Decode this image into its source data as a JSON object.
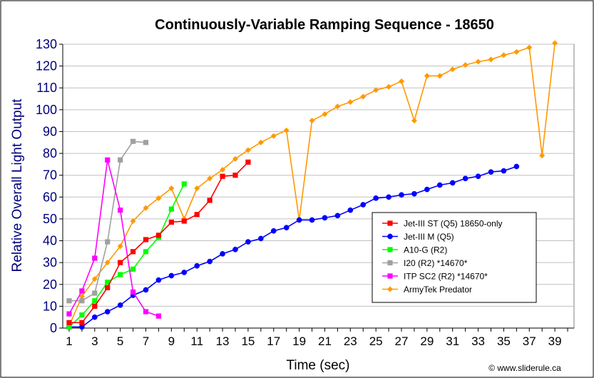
{
  "chart_data": {
    "type": "line",
    "title": "Continuously-Variable Ramping Sequence - 18650",
    "xlabel": "Time (sec)",
    "ylabel": "Relative Overall Light Output",
    "xlim": [
      0.5,
      40.5
    ],
    "ylim": [
      0,
      130
    ],
    "x_ticks": [
      1,
      3,
      5,
      7,
      9,
      11,
      13,
      15,
      17,
      19,
      21,
      23,
      25,
      27,
      29,
      31,
      33,
      35,
      37,
      39
    ],
    "y_ticks": [
      0,
      10,
      20,
      30,
      40,
      50,
      60,
      70,
      80,
      90,
      100,
      110,
      120,
      130
    ],
    "grid": "horizontal",
    "legend_position": "right",
    "credit": "© www.sliderule.ca",
    "series": [
      {
        "name": "Jet-III ST (Q5) 18650-only",
        "color": "#ff0000",
        "marker": "square",
        "x": [
          1,
          2,
          3,
          4,
          5,
          6,
          7,
          8,
          9,
          10,
          11,
          12,
          13,
          14,
          15
        ],
        "y": [
          2.5,
          2.5,
          10,
          18.5,
          30,
          35,
          40.5,
          42.5,
          48.5,
          49,
          52,
          58.5,
          69.5,
          70,
          76
        ]
      },
      {
        "name": "Jet-III M (Q5)",
        "color": "#0000ff",
        "marker": "circle",
        "x": [
          1,
          2,
          3,
          4,
          5,
          6,
          7,
          8,
          9,
          10,
          11,
          12,
          13,
          14,
          15,
          16,
          17,
          18,
          19,
          20,
          21,
          22,
          23,
          24,
          25,
          26,
          27,
          28,
          29,
          30,
          31,
          32,
          33,
          34,
          35,
          36
        ],
        "y": [
          0.5,
          0.5,
          5,
          7.5,
          10.5,
          15,
          17.5,
          22,
          24,
          25.5,
          28.5,
          30.5,
          34,
          36,
          39.5,
          41,
          44.5,
          46,
          49.5,
          49.5,
          50.5,
          51.5,
          54,
          56.5,
          59.5,
          60,
          61,
          61.5,
          63.5,
          65.5,
          66.5,
          68.5,
          69.5,
          71.5,
          72,
          74
        ]
      },
      {
        "name": "A10-G (R2)",
        "color": "#00ff00",
        "marker": "square",
        "x": [
          1,
          2,
          3,
          4,
          5,
          6,
          7,
          8,
          9,
          10
        ],
        "y": [
          0.5,
          6,
          12.5,
          21,
          24.5,
          27,
          35,
          41.5,
          54.5,
          66
        ]
      },
      {
        "name": "I20 (R2) *14670*",
        "color": "#a0a0a0",
        "marker": "square",
        "x": [
          1,
          2,
          3,
          4,
          5,
          6,
          7
        ],
        "y": [
          12.5,
          12.5,
          16,
          39.5,
          77,
          85.5,
          85
        ]
      },
      {
        "name": "ITP SC2 (R2) *14670*",
        "color": "#ff00ff",
        "marker": "square",
        "x": [
          1,
          2,
          3,
          4,
          5,
          6,
          7,
          8
        ],
        "y": [
          6.5,
          17,
          32,
          77,
          54,
          16.5,
          7.5,
          5.5
        ]
      },
      {
        "name": "ArmyTek Predator",
        "color": "#ff9900",
        "marker": "diamond",
        "x": [
          1,
          2,
          3,
          4,
          5,
          6,
          7,
          8,
          9,
          10,
          11,
          12,
          13,
          14,
          15,
          16,
          17,
          18,
          19,
          20,
          21,
          22,
          23,
          24,
          25,
          26,
          27,
          28,
          29,
          30,
          31,
          32,
          33,
          34,
          35,
          36,
          37,
          38,
          39
        ],
        "y": [
          1,
          14.5,
          22.5,
          30,
          37.5,
          49,
          55,
          59.5,
          64,
          50,
          64,
          68.5,
          72.5,
          77.5,
          81.5,
          85,
          88,
          90.5,
          49.5,
          95,
          98,
          101.5,
          103.5,
          106,
          109,
          110.5,
          113,
          95,
          115.5,
          115.5,
          118.5,
          120.5,
          122,
          123,
          125,
          126.5,
          128.5,
          79,
          130.5
        ]
      }
    ]
  }
}
